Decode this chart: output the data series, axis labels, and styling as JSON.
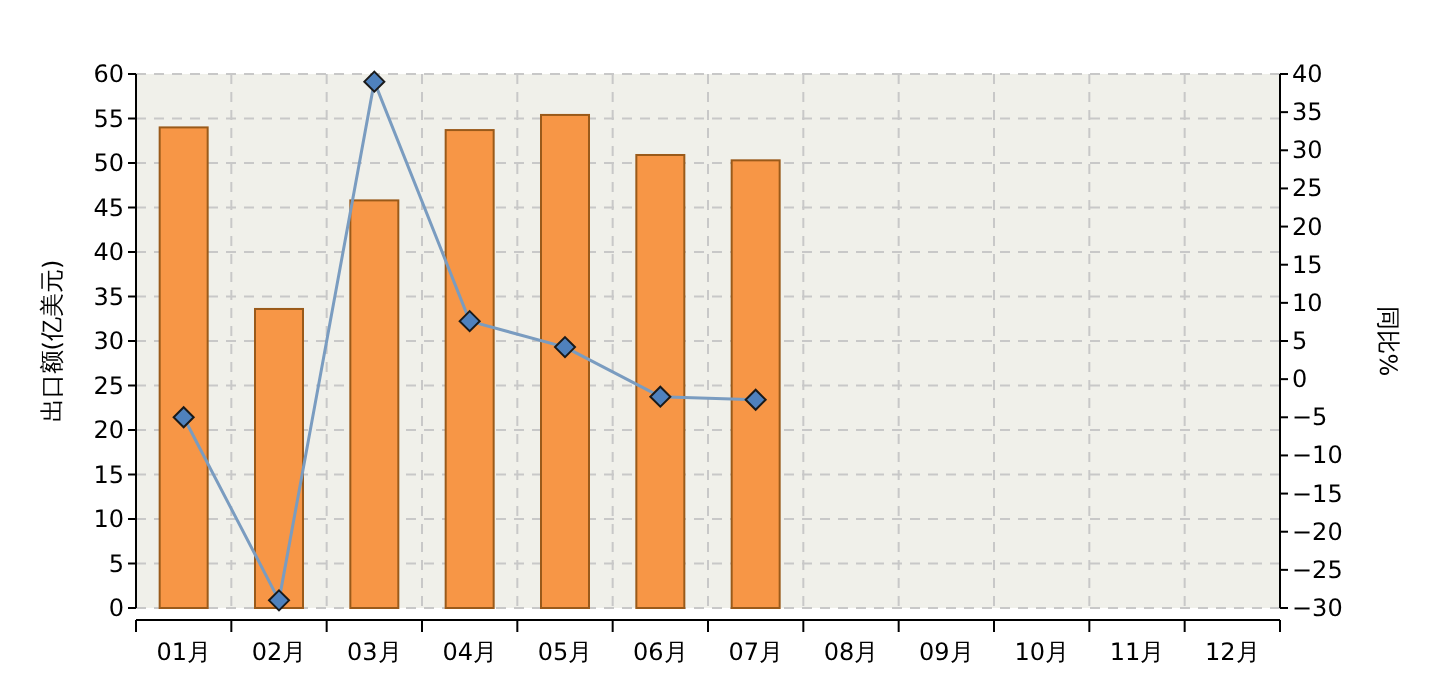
{
  "chart_data": {
    "type": "bar",
    "categories": [
      "01月",
      "02月",
      "03月",
      "04月",
      "05月",
      "06月",
      "07月",
      "08月",
      "09月",
      "10月",
      "11月",
      "12月"
    ],
    "ylabel": "出口额(亿美元)",
    "y2label": "同比%",
    "ylim": [
      0,
      60
    ],
    "yticks": [
      0,
      5,
      10,
      15,
      20,
      25,
      30,
      35,
      40,
      45,
      50,
      55,
      60
    ],
    "y2lim": [
      -30,
      40
    ],
    "y2ticks": [
      -30,
      -25,
      -20,
      -15,
      -10,
      -5,
      0,
      5,
      10,
      15,
      20,
      25,
      30,
      35,
      40
    ],
    "grid": true,
    "series": [
      {
        "color": "#f79646",
        "values": [
          54,
          33.6,
          45.8,
          53.7,
          55.4,
          50.9,
          50.3,
          null,
          null,
          null,
          null,
          null
        ]
      },
      {
        "type": "line",
        "axis": "y2",
        "color": "#4f81bd",
        "marker": "diamond",
        "line_style": "solid",
        "values": [
          -5,
          -29,
          39,
          7.6,
          4.2,
          -2.3,
          -2.7,
          null,
          null,
          null,
          null,
          null
        ]
      }
    ]
  }
}
